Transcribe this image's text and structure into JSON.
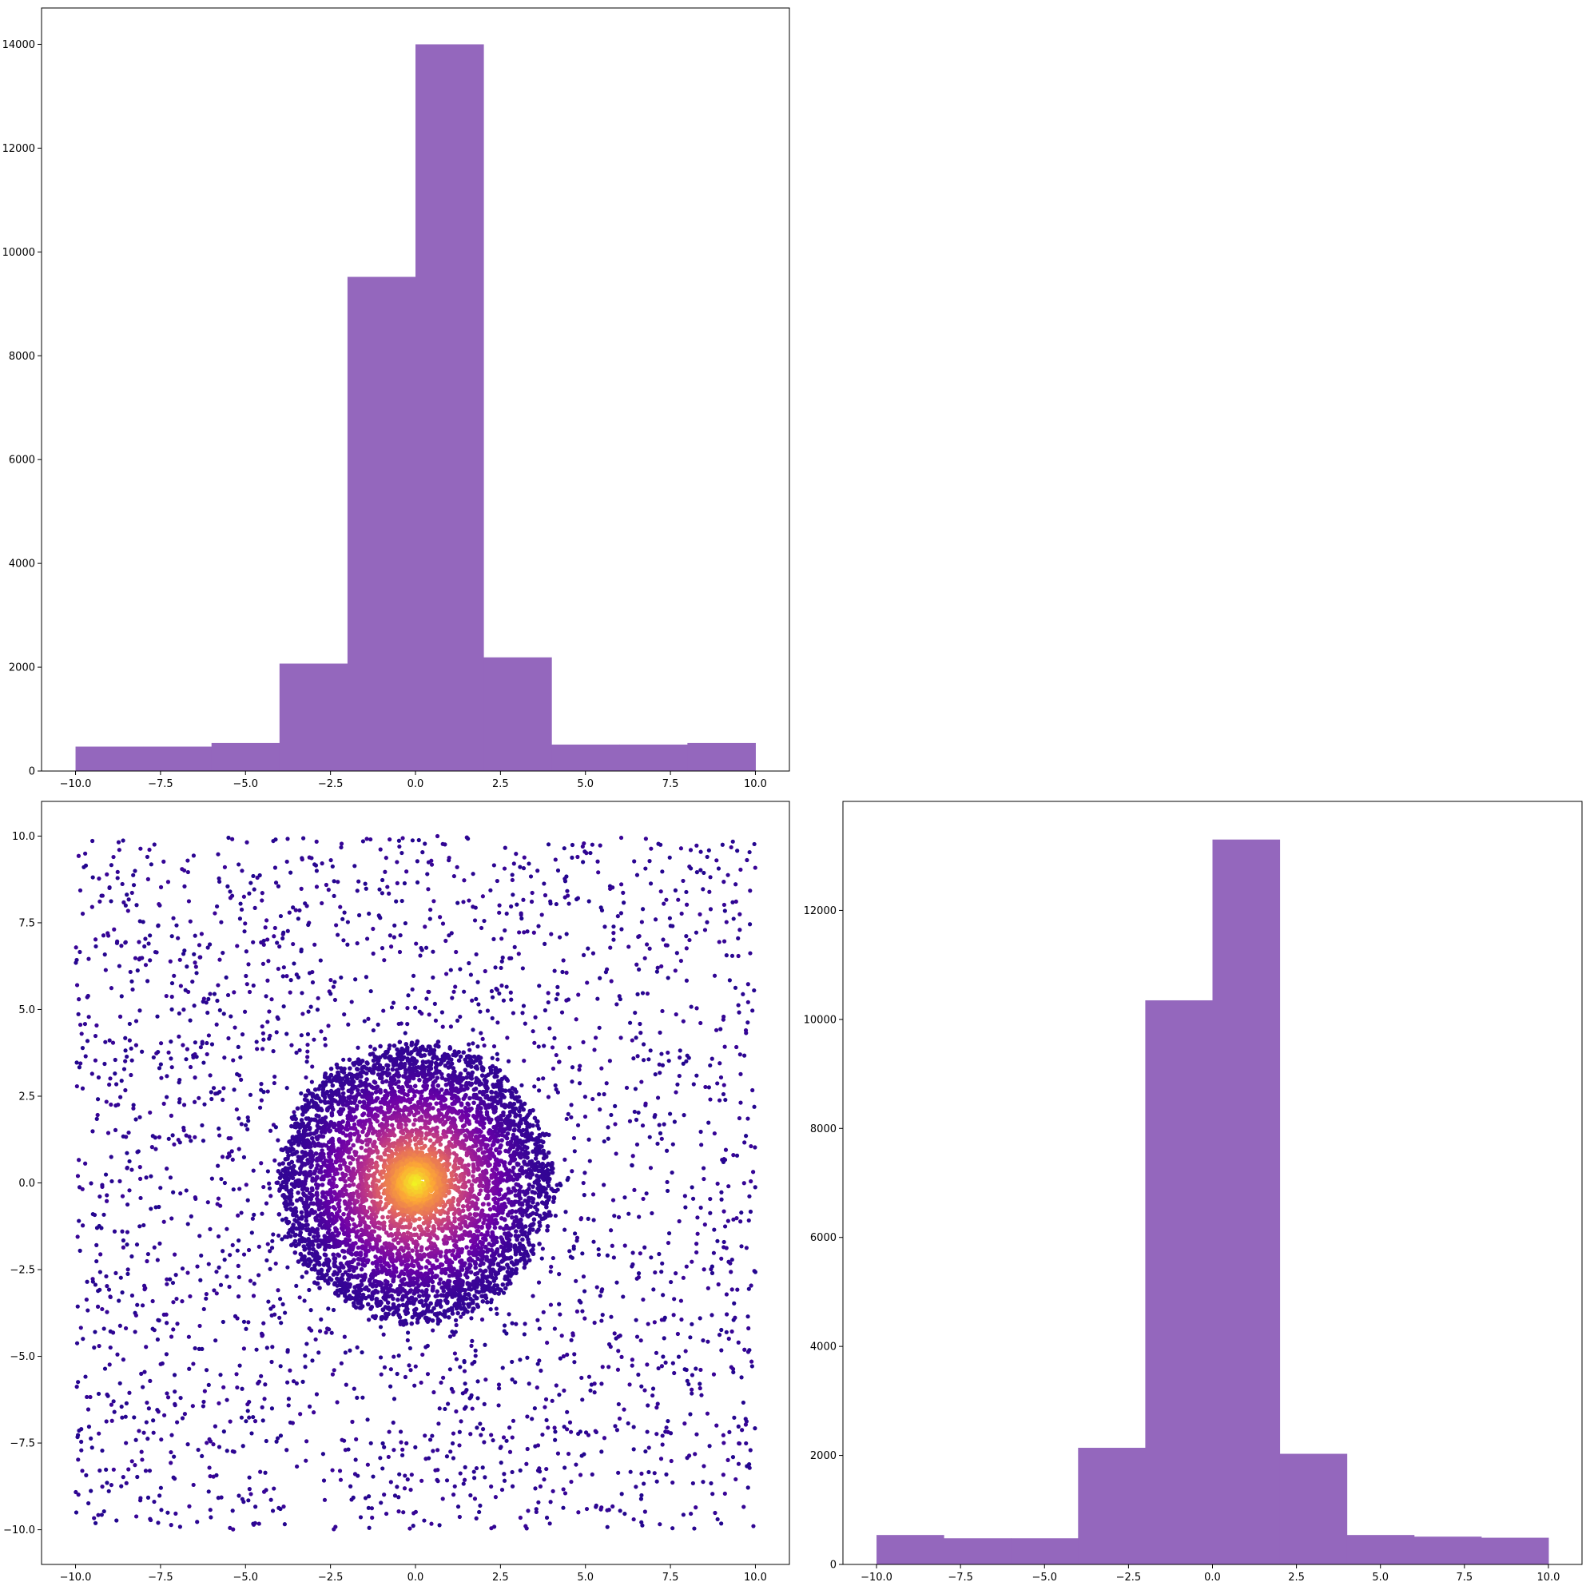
{
  "chart_data": [
    {
      "type": "bar",
      "subplot": "top-left",
      "title": "",
      "xlabel": "",
      "ylabel": "",
      "bin_edges": [
        -10,
        -8,
        -6,
        -4,
        -2,
        0,
        2,
        4,
        6,
        8,
        10
      ],
      "values": [
        470,
        470,
        540,
        2070,
        9520,
        14000,
        2190,
        510,
        510,
        540
      ],
      "xlim": [
        -11,
        11
      ],
      "ylim": [
        0,
        14700
      ],
      "xticks": [
        -10,
        -7.5,
        -5,
        -2.5,
        0,
        2.5,
        5,
        7.5,
        10
      ],
      "xtick_labels": [
        "−10.0",
        "−7.5",
        "−5.0",
        "−2.5",
        "0.0",
        "2.5",
        "5.0",
        "7.5",
        "10.0"
      ],
      "yticks": [
        0,
        2000,
        4000,
        6000,
        8000,
        10000,
        12000,
        14000
      ],
      "ytick_labels": [
        "0",
        "2000",
        "4000",
        "6000",
        "8000",
        "10000",
        "12000",
        "14000"
      ],
      "color": "#9467bd",
      "grid": false
    },
    {
      "type": "scatter",
      "subplot": "bottom-left",
      "title": "",
      "xlabel": "",
      "ylabel": "",
      "description_of_data": "dense disk of radius ~4 centered at origin, colored by density, over uniform background in [-10,10] x [-10,10]",
      "uniform_region": {
        "xmin": -10,
        "xmax": 10,
        "ymin": -10,
        "ymax": 10
      },
      "disk": {
        "center": [
          0,
          0
        ],
        "radius": 4.0
      },
      "colormap": "plasma",
      "colormap_stops": [
        "#0d0887",
        "#6a00a8",
        "#b12a90",
        "#e16462",
        "#fca636",
        "#f0f921"
      ],
      "xlim": [
        -11,
        11
      ],
      "ylim": [
        -11,
        11
      ],
      "xticks": [
        -10,
        -7.5,
        -5,
        -2.5,
        0,
        2.5,
        5,
        7.5,
        10
      ],
      "xtick_labels": [
        "−10.0",
        "−7.5",
        "−5.0",
        "−2.5",
        "0.0",
        "2.5",
        "5.0",
        "7.5",
        "10.0"
      ],
      "yticks": [
        -10,
        -7.5,
        -5,
        -2.5,
        0,
        2.5,
        5,
        7.5,
        10
      ],
      "ytick_labels": [
        "−10.0",
        "−7.5",
        "−5.0",
        "−2.5",
        "0.0",
        "2.5",
        "5.0",
        "7.5",
        "10.0"
      ],
      "grid": false
    },
    {
      "type": "bar",
      "subplot": "bottom-right",
      "title": "",
      "xlabel": "",
      "ylabel": "",
      "bin_edges": [
        -10,
        -8,
        -6,
        -4,
        -2,
        0,
        2,
        4,
        6,
        8,
        10
      ],
      "values": [
        540,
        480,
        480,
        2140,
        10350,
        13300,
        2030,
        540,
        510,
        490
      ],
      "xlim": [
        -11,
        11
      ],
      "ylim": [
        0,
        14000
      ],
      "xticks": [
        -10,
        -7.5,
        -5,
        -2.5,
        0,
        2.5,
        5,
        7.5,
        10
      ],
      "xtick_labels": [
        "−10.0",
        "−7.5",
        "−5.0",
        "−2.5",
        "0.0",
        "2.5",
        "5.0",
        "7.5",
        "10.0"
      ],
      "yticks": [
        0,
        2000,
        4000,
        6000,
        8000,
        10000,
        12000
      ],
      "ytick_labels": [
        "0",
        "2000",
        "4000",
        "6000",
        "8000",
        "10000",
        "12000"
      ],
      "color": "#9467bd",
      "grid": false
    }
  ]
}
